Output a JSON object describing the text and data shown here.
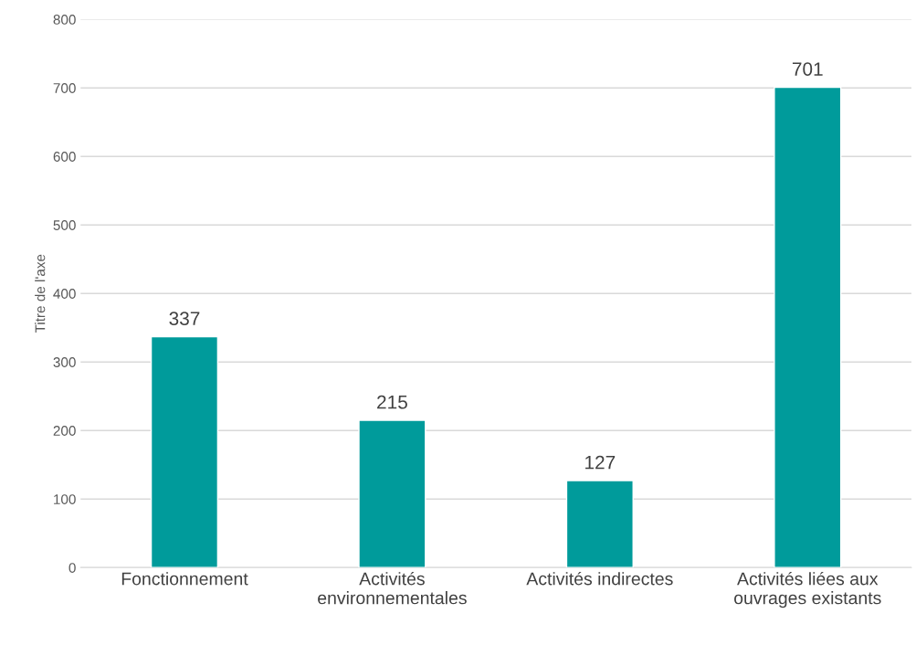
{
  "chart_data": {
    "type": "bar",
    "categories": [
      "Fonctionnement",
      "Activités\nenvironnementales",
      "Activités indirectes",
      "Activités liées aux\nouvrages existants"
    ],
    "values": [
      337,
      215,
      127,
      701
    ],
    "color": "#009b9b",
    "ylabel": "Titre de l'axe",
    "ylim": [
      0,
      800
    ],
    "yticks": [
      0,
      100,
      200,
      300,
      400,
      500,
      600,
      700,
      800
    ],
    "grid": "y",
    "data_labels": true
  }
}
